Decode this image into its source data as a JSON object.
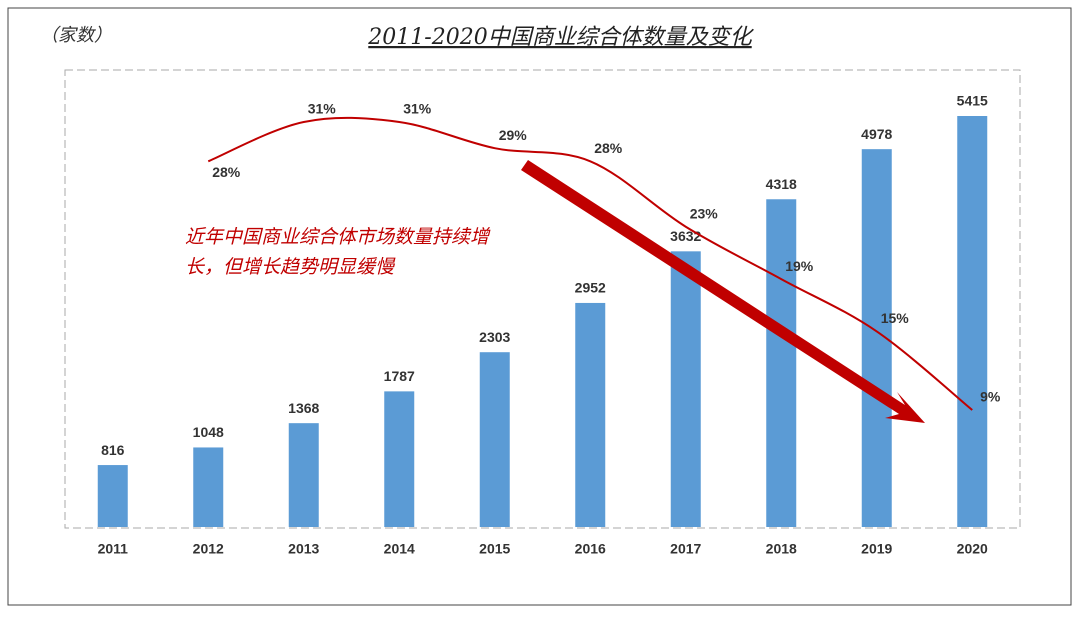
{
  "chart_data": {
    "type": "bar",
    "title": "2011-2020中国商业综合体数量及变化",
    "unit_label": "（家数）",
    "annotation": [
      "近年中国商业综合体市场数量持续增",
      "长，但增长趋势明显缓慢"
    ],
    "categories": [
      "2011",
      "2012",
      "2013",
      "2014",
      "2015",
      "2016",
      "2017",
      "2018",
      "2019",
      "2020"
    ],
    "series": [
      {
        "type": "bar",
        "color": "#5b9bd5",
        "values": [
          816,
          1048,
          1368,
          1787,
          2303,
          2952,
          3632,
          4318,
          4978,
          5415
        ]
      },
      {
        "type": "line",
        "color": "#c00000",
        "values": [
          null,
          28,
          31,
          31,
          29,
          28,
          23,
          19,
          15,
          9
        ],
        "value_labels": [
          null,
          "28%",
          "31%",
          "31%",
          "29%",
          "28%",
          "23%",
          "19%",
          "15%",
          "9%"
        ]
      }
    ]
  }
}
